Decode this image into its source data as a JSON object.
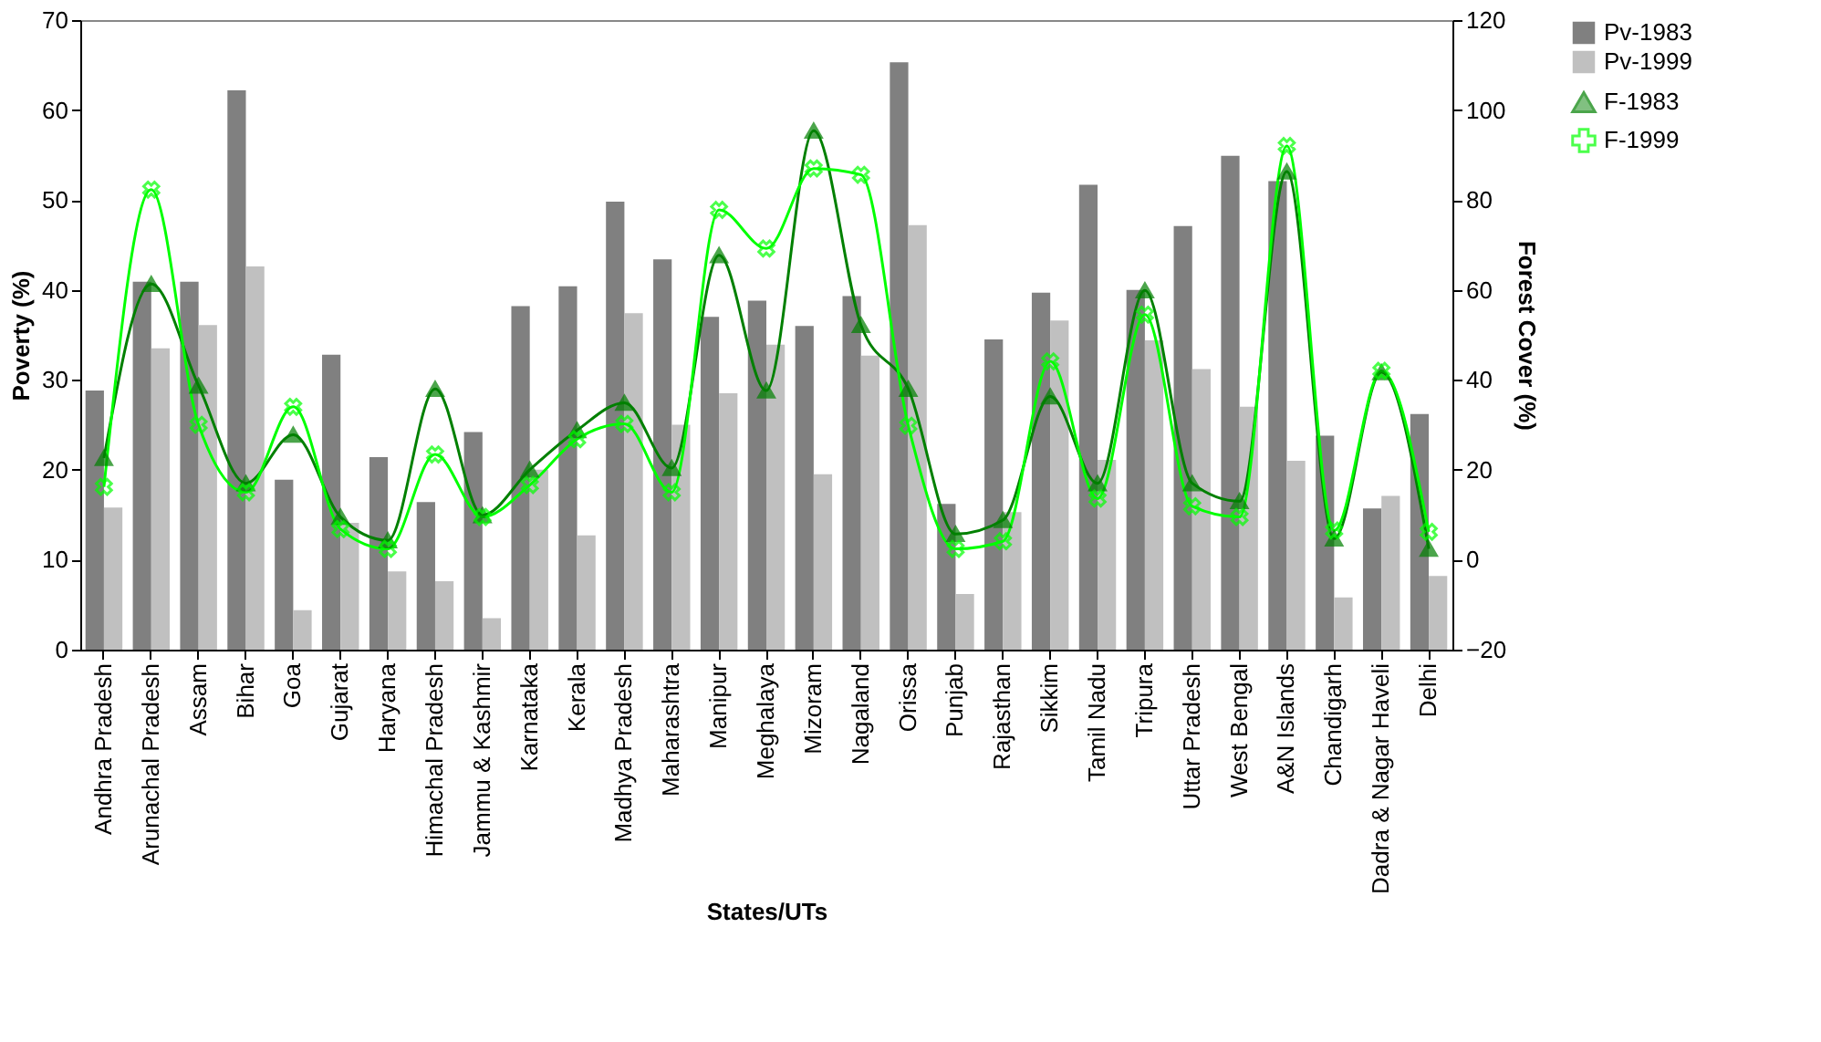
{
  "chart_data": {
    "type": "bar",
    "xlabel": "States/UTs",
    "ylabel": "Poverty (%)",
    "y2label": "Forest Cover (%)",
    "categories": [
      "Andhra Pradesh",
      "Arunachal Pradesh",
      "Assam",
      "Bihar",
      "Goa",
      "Gujarat",
      "Haryana",
      "Himachal Pradesh",
      "Jammu & Kashmir",
      "Karnataka",
      "Kerala",
      "Madhya Pradesh",
      "Maharashtra",
      "Manipur",
      "Meghalaya",
      "Mizoram",
      "Nagaland",
      "Orissa",
      "Punjab",
      "Rajasthan",
      "Sikkim",
      "Tamil Nadu",
      "Tripura",
      "Uttar Pradesh",
      "West Bengal",
      "A&N Islands",
      "Chandigarh",
      "Dadra & Nagar Haveli",
      "Delhi"
    ],
    "series": [
      {
        "name": "Pv-1983",
        "color": "#808080",
        "values": [
          28.8,
          40.9,
          40.9,
          62.2,
          18.9,
          32.8,
          21.4,
          16.4,
          24.2,
          38.2,
          40.4,
          49.8,
          43.4,
          37.0,
          38.8,
          36.0,
          39.3,
          65.3,
          16.2,
          34.5,
          39.7,
          51.7,
          40.0,
          47.1,
          54.9,
          52.1,
          23.8,
          15.7,
          26.2
        ]
      },
      {
        "name": "Pv-1999",
        "color": "#c0c0c0",
        "values": [
          15.8,
          33.5,
          36.1,
          42.6,
          4.4,
          14.1,
          8.7,
          7.6,
          3.5,
          20.0,
          12.7,
          37.4,
          25.0,
          28.5,
          33.9,
          19.5,
          32.7,
          47.2,
          6.2,
          15.3,
          36.6,
          21.1,
          34.4,
          31.2,
          27.0,
          21.0,
          5.8,
          17.1,
          8.2
        ]
      },
      {
        "name": "F-1983",
        "type": "line",
        "axis": "y2",
        "marker": "triangle",
        "color": "#008000",
        "values": [
          22.6,
          61.3,
          38.7,
          17,
          27.8,
          9.5,
          4.3,
          38,
          9.9,
          20.0,
          28.8,
          34.9,
          20.4,
          67.7,
          37.6,
          95.4,
          52.2,
          38,
          5.7,
          8.8,
          36.3,
          17,
          59.9,
          17,
          13,
          86.3,
          4.7,
          41.7,
          2.4
        ]
      },
      {
        "name": "F-1999",
        "type": "line",
        "axis": "y2",
        "marker": "cross",
        "color": "#00ff00",
        "values": [
          16.2,
          82.3,
          30,
          15,
          34,
          6.8,
          2.4,
          23.4,
          9.5,
          16.6,
          26.8,
          30.2,
          15,
          77.8,
          69.2,
          87,
          85.6,
          29.8,
          2.4,
          4.1,
          44.1,
          13.6,
          54.5,
          11.9,
          9.5,
          92,
          6.5,
          42,
          6.2
        ]
      }
    ],
    "ylim": [
      0,
      70
    ],
    "yticks": [
      0,
      10,
      20,
      30,
      40,
      50,
      60,
      70
    ],
    "y2lim": [
      -20,
      120
    ],
    "y2ticks": [
      -20,
      0,
      20,
      40,
      60,
      80,
      100,
      120
    ],
    "grid": false,
    "legend": "right"
  }
}
